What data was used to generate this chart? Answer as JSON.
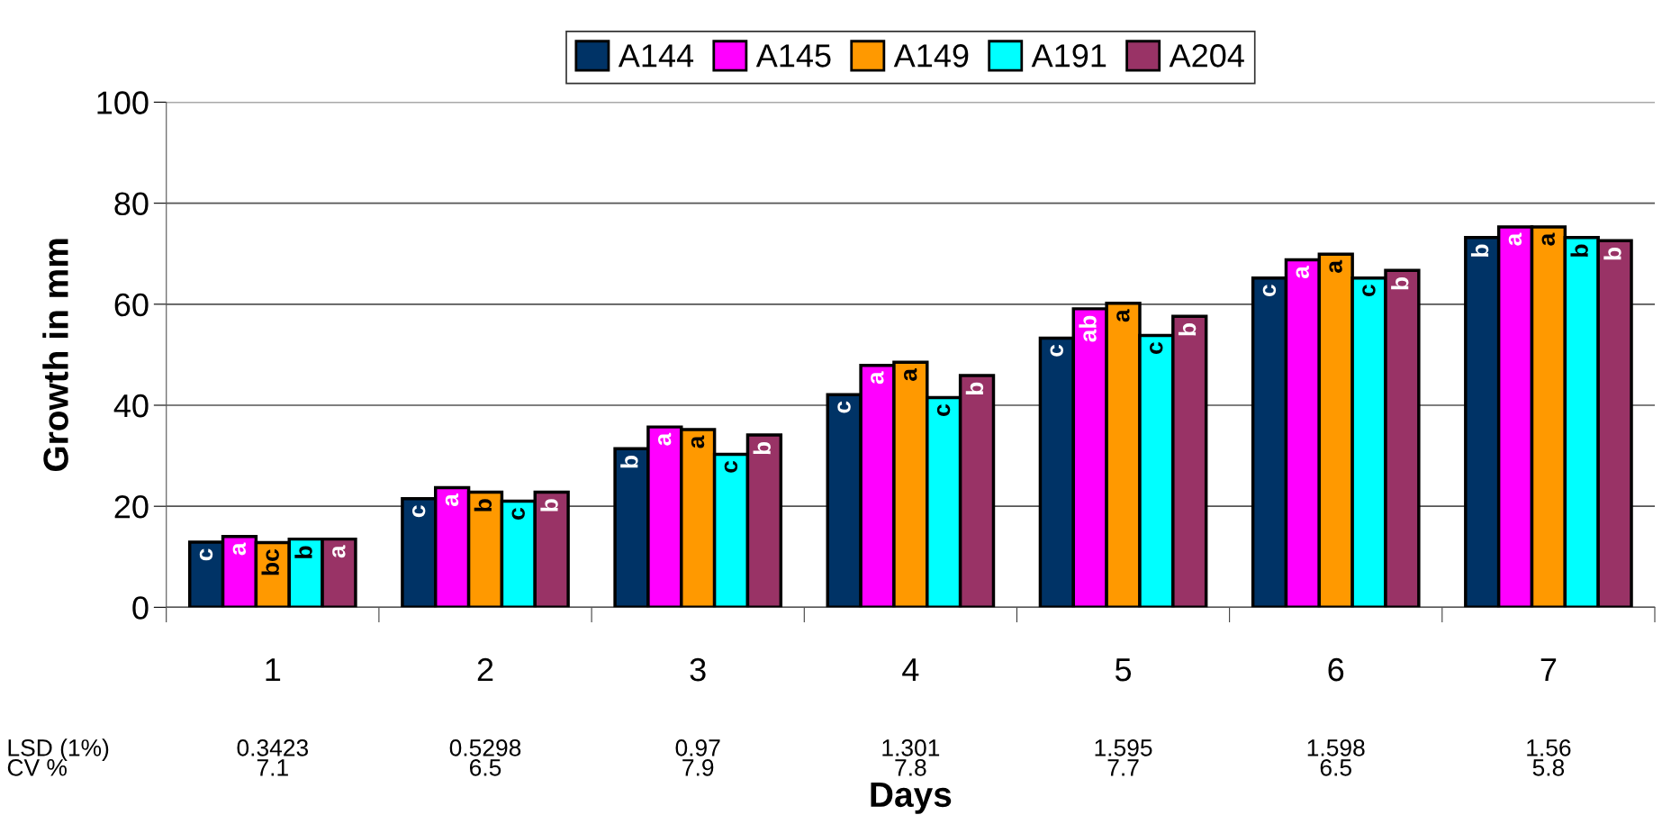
{
  "chart_data": {
    "type": "bar",
    "xlabel": "Days",
    "ylabel": "Growth in mm",
    "categories": [
      "1",
      "2",
      "3",
      "4",
      "5",
      "6",
      "7"
    ],
    "series": [
      {
        "name": "A144",
        "color": "#003366",
        "values": [
          12.9,
          21.5,
          31.4,
          42.1,
          53.3,
          65.2,
          73.2
        ],
        "value_labels": [
          "c",
          "c",
          "b",
          "c",
          "c",
          "c",
          "b"
        ]
      },
      {
        "name": "A145",
        "color": "#ff00ff",
        "values": [
          14.0,
          23.7,
          35.7,
          47.9,
          59.1,
          68.8,
          75.3
        ],
        "value_labels": [
          "a",
          "a",
          "a",
          "a",
          "ab",
          "a",
          "a"
        ]
      },
      {
        "name": "A149",
        "color": "#ff9900",
        "values": [
          12.8,
          22.8,
          35.2,
          48.5,
          60.2,
          69.9,
          75.3
        ],
        "value_labels": [
          "bc",
          "b",
          "a",
          "a",
          "a",
          "a",
          "a"
        ]
      },
      {
        "name": "A191",
        "color": "#00ffff",
        "values": [
          13.5,
          21.0,
          30.3,
          41.5,
          53.8,
          65.2,
          73.2
        ],
        "value_labels": [
          "b",
          "c",
          "c",
          "c",
          "c",
          "c",
          "b"
        ]
      },
      {
        "name": "A204",
        "color": "#993366",
        "values": [
          13.5,
          22.8,
          34.1,
          45.9,
          57.6,
          66.7,
          72.6
        ],
        "value_labels": [
          "a",
          "b",
          "b",
          "b",
          "b",
          "b",
          "b"
        ]
      }
    ],
    "ylim": [
      0,
      100
    ],
    "yticks": [
      0,
      20,
      40,
      60,
      80,
      100
    ],
    "grid": "y",
    "legend": "top",
    "annotations": [
      "LSD (1%)",
      "0.3423",
      "0.5298",
      "0.97",
      "1.301",
      "1.595",
      "1.598",
      "1.56",
      "CV %",
      "7.1",
      "6.5",
      "7.9",
      "7.8",
      "7.7",
      "6.5",
      "5.8"
    ]
  }
}
